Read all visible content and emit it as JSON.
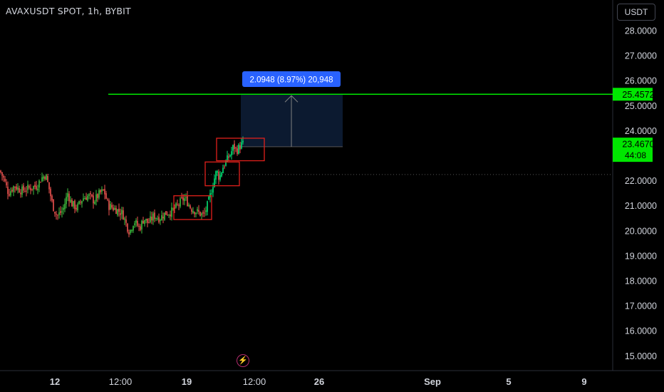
{
  "header": {
    "title": "AVAXUSDT SPOT, 1h, BYBIT",
    "currency_button": "USDT",
    "alert_icon": "lightning-icon"
  },
  "colors": {
    "up": "#26a69a",
    "up_bright": "#00e676",
    "down": "#ef5350",
    "level": "#00e600",
    "box": "#e0201b",
    "target_fill": "#0c1a30",
    "measure_label": "#2962ff",
    "grid": "#1a1a1a"
  },
  "chart_data": {
    "type": "candlestick",
    "title": "AVAXUSDT SPOT, 1h, BYBIT",
    "xlabel": "",
    "ylabel": "",
    "ylim": [
      14.55,
      28.6
    ],
    "y_ticks": [
      "28.0000",
      "27.0000",
      "26.0000",
      "25.0000",
      "24.0000",
      "22.0000",
      "21.0000",
      "20.0000",
      "19.0000",
      "18.0000",
      "17.0000",
      "16.0000",
      "15.0000"
    ],
    "x_ticks": [
      "12",
      "12:00",
      "19",
      "12:00",
      "26",
      "Sep",
      "5",
      "9"
    ],
    "x_tick_dates": [
      "Aug 12",
      "Aug 12 12:00",
      "Aug 19",
      "Aug 21 12:00",
      "Aug 26",
      "Sep 1",
      "Sep 5",
      "Sep 9"
    ],
    "price_path": [
      [
        0,
        22.4
      ],
      [
        5,
        22.1
      ],
      [
        12,
        21.5
      ],
      [
        20,
        21.8
      ],
      [
        30,
        21.6
      ],
      [
        40,
        21.7
      ],
      [
        52,
        21.8
      ],
      [
        58,
        22.1
      ],
      [
        64,
        22.25
      ],
      [
        68,
        21.8
      ],
      [
        74,
        21.0
      ],
      [
        80,
        20.6
      ],
      [
        88,
        20.8
      ],
      [
        95,
        21.5
      ],
      [
        100,
        21.1
      ],
      [
        108,
        20.9
      ],
      [
        116,
        21.3
      ],
      [
        124,
        21.4
      ],
      [
        132,
        21.2
      ],
      [
        140,
        21.5
      ],
      [
        146,
        21.6
      ],
      [
        152,
        21.0
      ],
      [
        160,
        20.9
      ],
      [
        166,
        20.8
      ],
      [
        172,
        20.7
      ],
      [
        178,
        20.2
      ],
      [
        182,
        19.95
      ],
      [
        188,
        20.4
      ],
      [
        196,
        20.1
      ],
      [
        202,
        20.5
      ],
      [
        208,
        20.3
      ],
      [
        216,
        20.6
      ],
      [
        224,
        20.5
      ],
      [
        232,
        20.7
      ],
      [
        240,
        20.75
      ],
      [
        246,
        20.9
      ],
      [
        252,
        21.1
      ],
      [
        258,
        21.3
      ],
      [
        262,
        21.2
      ],
      [
        268,
        20.9
      ],
      [
        274,
        20.8
      ],
      [
        280,
        20.7
      ],
      [
        286,
        20.6
      ],
      [
        292,
        21.1
      ],
      [
        296,
        21.5
      ],
      [
        300,
        22.0
      ],
      [
        304,
        22.4
      ],
      [
        308,
        22.1
      ],
      [
        312,
        22.5
      ],
      [
        316,
        22.7
      ],
      [
        320,
        22.9
      ],
      [
        324,
        23.1
      ],
      [
        328,
        23.4
      ],
      [
        332,
        23.2
      ],
      [
        336,
        23.35
      ],
      [
        340,
        23.47
      ]
    ],
    "last_price": 23.467,
    "countdown": "44:08",
    "horizontal_level": {
      "price": 25.4572,
      "label": "25.4572"
    },
    "measure": {
      "label": "2.0948 (8.97%) 20,948",
      "from_price": 23.36,
      "to_price": 25.4572
    },
    "dotted_level": 22.25,
    "boxes": [
      {
        "x1": 244,
        "x2": 297,
        "top": 21.4,
        "bottom": 20.45
      },
      {
        "x1": 288,
        "x2": 336,
        "top": 22.75,
        "bottom": 21.8
      },
      {
        "x1": 304,
        "x2": 371,
        "top": 23.7,
        "bottom": 22.8
      }
    ]
  }
}
